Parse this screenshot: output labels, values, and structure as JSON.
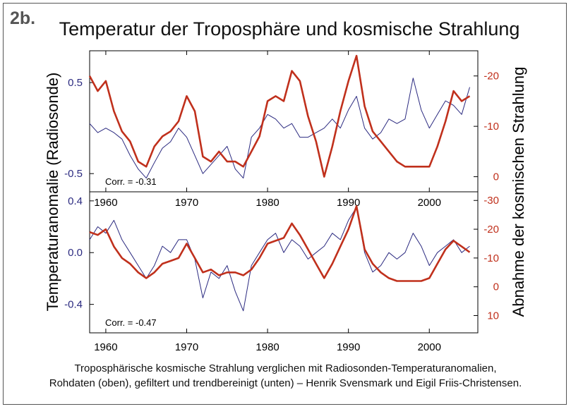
{
  "figure_label": "2b.",
  "title": "Temperatur der Troposphäre und kosmische Strahlung",
  "caption_lines": [
    "Troposphärische kosmische Strahlung verglichen mit Radiosonden-Temperaturanomalien,",
    "Rohdaten (oben), gefiltert und trendbereinigt (unten) – Henrik Svensmark und Eigil Friis-Christensen."
  ],
  "colors": {
    "temperature": "#2b2a80",
    "cosmic": "#c0301c",
    "left_axis_text": "#2b2a80",
    "right_axis_text": "#c0301c"
  },
  "y_label_left": "Temperaturanomalie (Radiosonde)",
  "y_label_right": "Abnahme der kosmischen Strahlung",
  "chart_data": [
    {
      "type": "line",
      "panel": "top",
      "annotation": "Corr. = -0.31",
      "xlim": [
        1958,
        2006
      ],
      "x_ticks": [
        "1960",
        "1970",
        "1980",
        "1990",
        "2000"
      ],
      "y_left_ticks": [
        "0.5",
        "-0.5"
      ],
      "y_left_tick_values": [
        0.5,
        -0.5
      ],
      "ylim_left": [
        -0.7,
        0.85
      ],
      "y_right_ticks": [
        "-20",
        "-10",
        "0"
      ],
      "y_right_tick_values": [
        -20,
        -10,
        0
      ],
      "ylim_right": [
        3,
        -25
      ],
      "series": [
        {
          "axis": "left",
          "x": [
            1958,
            1959,
            1960,
            1961,
            1962,
            1963,
            1964,
            1965,
            1966,
            1967,
            1968,
            1969,
            1970,
            1971,
            1972,
            1973,
            1974,
            1975,
            1976,
            1977,
            1978,
            1979,
            1980,
            1981,
            1982,
            1983,
            1984,
            1985,
            1986,
            1987,
            1988,
            1989,
            1990,
            1991,
            1992,
            1993,
            1994,
            1995,
            1996,
            1997,
            1998,
            1999,
            2000,
            2001,
            2002,
            2003,
            2004,
            2005
          ],
          "values": [
            0.05,
            -0.05,
            0.0,
            -0.05,
            -0.12,
            -0.3,
            -0.45,
            -0.55,
            -0.38,
            -0.22,
            -0.15,
            0.0,
            -0.1,
            -0.3,
            -0.5,
            -0.4,
            -0.3,
            -0.2,
            -0.45,
            -0.55,
            -0.1,
            0.0,
            0.15,
            0.1,
            0.0,
            0.05,
            -0.1,
            -0.1,
            -0.05,
            0.0,
            0.1,
            0.0,
            0.2,
            0.35,
            0.0,
            -0.12,
            -0.05,
            0.1,
            0.05,
            0.1,
            0.55,
            0.2,
            0.0,
            0.15,
            0.3,
            0.25,
            0.15,
            0.45
          ]
        },
        {
          "axis": "right",
          "x": [
            1958,
            1959,
            1960,
            1961,
            1962,
            1963,
            1964,
            1965,
            1966,
            1967,
            1968,
            1969,
            1970,
            1971,
            1972,
            1973,
            1974,
            1975,
            1976,
            1977,
            1978,
            1979,
            1980,
            1981,
            1982,
            1983,
            1984,
            1985,
            1986,
            1987,
            1988,
            1989,
            1990,
            1991,
            1992,
            1993,
            1994,
            1995,
            1996,
            1997,
            1998,
            1999,
            2000,
            2001,
            2002,
            2003,
            2004,
            2005
          ],
          "values": [
            -20,
            -17,
            -19,
            -13,
            -9,
            -7,
            -3,
            -2,
            -6,
            -8,
            -9,
            -11,
            -16,
            -13,
            -4,
            -3,
            -5,
            -3,
            -3,
            -2,
            -5,
            -8,
            -15,
            -16,
            -15,
            -21,
            -19,
            -12,
            -7,
            0,
            -6,
            -13,
            -19,
            -24,
            -14,
            -9,
            -7,
            -5,
            -3,
            -2,
            -2,
            -2,
            -2,
            -6,
            -11,
            -17,
            -15,
            -16
          ]
        }
      ]
    },
    {
      "type": "line",
      "panel": "bottom",
      "annotation": "Corr. = -0.47",
      "xlim": [
        1958,
        2006
      ],
      "x_ticks": [
        "1960",
        "1970",
        "1980",
        "1990",
        "2000"
      ],
      "y_left_ticks": [
        "0.4",
        "0.0",
        "-0.4"
      ],
      "y_left_tick_values": [
        0.4,
        0.0,
        -0.4
      ],
      "ylim_left": [
        -0.62,
        0.47
      ],
      "y_right_ticks": [
        "-30",
        "-20",
        "-10",
        "0",
        "10"
      ],
      "y_right_tick_values": [
        -30,
        -20,
        -10,
        0,
        10
      ],
      "ylim_right": [
        16,
        -33
      ],
      "series": [
        {
          "axis": "left",
          "x": [
            1958,
            1959,
            1960,
            1961,
            1962,
            1963,
            1964,
            1965,
            1966,
            1967,
            1968,
            1969,
            1970,
            1971,
            1972,
            1973,
            1974,
            1975,
            1976,
            1977,
            1978,
            1979,
            1980,
            1981,
            1982,
            1983,
            1984,
            1985,
            1986,
            1987,
            1988,
            1989,
            1990,
            1991,
            1992,
            1993,
            1994,
            1995,
            1996,
            1997,
            1998,
            1999,
            2000,
            2001,
            2002,
            2003,
            2004,
            2005
          ],
          "values": [
            0.1,
            0.2,
            0.15,
            0.25,
            0.1,
            0.0,
            -0.1,
            -0.2,
            -0.1,
            0.05,
            0.0,
            0.1,
            0.1,
            -0.05,
            -0.35,
            -0.15,
            -0.2,
            -0.1,
            -0.3,
            -0.45,
            -0.1,
            0.0,
            0.1,
            0.15,
            0.0,
            0.1,
            0.05,
            -0.05,
            0.0,
            0.05,
            0.15,
            0.1,
            0.25,
            0.35,
            0.0,
            -0.15,
            -0.1,
            0.0,
            -0.05,
            0.0,
            0.15,
            0.05,
            -0.1,
            0.0,
            0.05,
            0.1,
            0.0,
            0.05
          ]
        },
        {
          "axis": "right",
          "x": [
            1958,
            1959,
            1960,
            1961,
            1962,
            1963,
            1964,
            1965,
            1966,
            1967,
            1968,
            1969,
            1970,
            1971,
            1972,
            1973,
            1974,
            1975,
            1976,
            1977,
            1978,
            1979,
            1980,
            1981,
            1982,
            1983,
            1984,
            1985,
            1986,
            1987,
            1988,
            1989,
            1990,
            1991,
            1992,
            1993,
            1994,
            1995,
            1996,
            1997,
            1998,
            1999,
            2000,
            2001,
            2002,
            2003,
            2004,
            2005
          ],
          "values": [
            -19,
            -18,
            -20,
            -14,
            -10,
            -8,
            -5,
            -3,
            -5,
            -8,
            -9,
            -10,
            -15,
            -10,
            -5,
            -6,
            -4,
            -5,
            -5,
            -4,
            -6,
            -10,
            -15,
            -16,
            -17,
            -22,
            -18,
            -13,
            -8,
            -3,
            -8,
            -14,
            -20,
            -28,
            -13,
            -8,
            -5,
            -3,
            -2,
            -2,
            -2,
            -2,
            -3,
            -8,
            -13,
            -16,
            -14,
            -12
          ]
        }
      ]
    }
  ]
}
